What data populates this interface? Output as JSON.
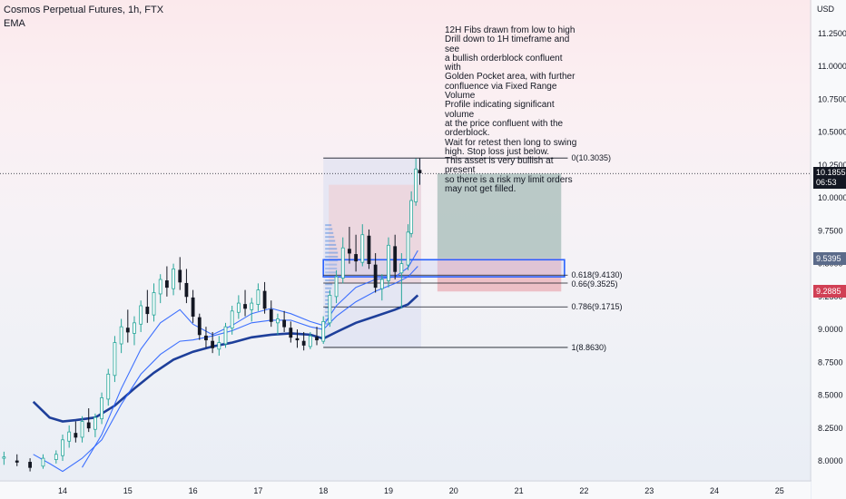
{
  "header": {
    "symbol": "Cosmos Perpetual Futures, 1h, FTX",
    "indicator": "EMA"
  },
  "price_axis": {
    "currency": "USD",
    "ticks": [
      "11.2500",
      "11.0000",
      "10.7500",
      "10.5000",
      "10.2500",
      "10.0000",
      "9.7500",
      "9.5000",
      "9.2500",
      "9.0000",
      "8.7500",
      "8.5000",
      "8.2500",
      "8.0000"
    ],
    "tick_values": [
      11.25,
      11.0,
      10.75,
      10.5,
      10.25,
      10.0,
      9.75,
      9.5,
      9.25,
      9.0,
      8.75,
      8.5,
      8.25,
      8.0
    ],
    "last_price": "10.1855",
    "countdown": "06:53",
    "marker_blue": "9.5395",
    "marker_red": "9.2885",
    "last_price_value": 10.1855,
    "marker_blue_value": 9.5395,
    "marker_red_value": 9.2885
  },
  "time_axis": {
    "labels": [
      "14",
      "15",
      "16",
      "17",
      "18",
      "19",
      "20",
      "21",
      "22",
      "23",
      "24",
      "25"
    ]
  },
  "annotation": {
    "text": "12H Fibs drawn from low to high\nDrill down to 1H timeframe and see\na bullish orderblock confluent with\nGolden Pocket area, with further\nconfluence via Fixed Range Volume\nProfile indicating significant volume\nat the price confluent with the\norderblock.\nWait for retest then long to swing\nhigh. Stop loss just below.\nThis asset is very bullish at present\nso there is a risk my limit orders\nmay not get filled."
  },
  "fib_levels": [
    {
      "label": "0(10.3035)",
      "value": 10.3035
    },
    {
      "label": "0.618(9.4130)",
      "value": 9.413
    },
    {
      "label": "0.66(9.3525)",
      "value": 9.3525
    },
    {
      "label": "0.786(9.1715)",
      "value": 9.1715
    },
    {
      "label": "1(8.8630)",
      "value": 8.863
    }
  ],
  "colors": {
    "bull": "#26a69a",
    "bear": "#131722",
    "ema_fast": "#2962ff",
    "ema_slow": "#1e3f9a",
    "orderblock": "#2962ff",
    "marker_blue": "#5b6b8a",
    "marker_red": "#d14055",
    "last_price": "#131722"
  },
  "chart_data": {
    "type": "candlestick",
    "title": "Cosmos Perpetual Futures, 1h, FTX",
    "ylim": [
      7.9,
      11.45
    ],
    "x_labels": [
      "14",
      "15",
      "16",
      "17",
      "18",
      "19",
      "20",
      "21",
      "22",
      "23",
      "24",
      "25"
    ],
    "price_line": 10.1855,
    "series": [
      {
        "name": "EMA",
        "points": [
          [
            13.55,
            8.45
          ],
          [
            13.8,
            8.33
          ],
          [
            14.0,
            8.3
          ],
          [
            14.2,
            8.31
          ],
          [
            14.5,
            8.33
          ],
          [
            14.8,
            8.42
          ],
          [
            15.1,
            8.55
          ],
          [
            15.4,
            8.67
          ],
          [
            15.7,
            8.77
          ],
          [
            16.0,
            8.83
          ],
          [
            16.3,
            8.87
          ],
          [
            16.6,
            8.9
          ],
          [
            16.9,
            8.94
          ],
          [
            17.2,
            8.96
          ],
          [
            17.5,
            8.97
          ],
          [
            17.8,
            8.96
          ],
          [
            18.0,
            8.93
          ],
          [
            18.2,
            8.98
          ],
          [
            18.5,
            9.05
          ],
          [
            18.8,
            9.1
          ],
          [
            19.1,
            9.15
          ],
          [
            19.3,
            9.19
          ],
          [
            19.45,
            9.26
          ]
        ]
      },
      {
        "name": "",
        "points": [
          [
            13.55,
            8.05
          ],
          [
            13.8,
            7.98
          ],
          [
            14.0,
            7.92
          ],
          [
            14.3,
            8.02
          ],
          [
            14.6,
            8.16
          ],
          [
            14.9,
            8.43
          ],
          [
            15.2,
            8.66
          ],
          [
            15.5,
            8.81
          ],
          [
            15.8,
            8.91
          ],
          [
            16.0,
            8.92
          ],
          [
            16.3,
            8.95
          ],
          [
            16.6,
            8.99
          ],
          [
            16.9,
            9.05
          ],
          [
            17.2,
            9.07
          ],
          [
            17.5,
            9.07
          ],
          [
            17.8,
            9.02
          ],
          [
            18.0,
            9.0
          ],
          [
            18.2,
            9.1
          ],
          [
            18.5,
            9.21
          ],
          [
            18.8,
            9.29
          ],
          [
            19.1,
            9.35
          ],
          [
            19.3,
            9.4
          ],
          [
            19.45,
            9.48
          ]
        ]
      },
      {
        "name": "",
        "points": [
          [
            14.3,
            7.95
          ],
          [
            14.6,
            8.2
          ],
          [
            14.9,
            8.55
          ],
          [
            15.2,
            8.85
          ],
          [
            15.5,
            9.05
          ],
          [
            15.8,
            9.15
          ],
          [
            16.0,
            9.04
          ],
          [
            16.3,
            8.96
          ],
          [
            16.6,
            9.03
          ],
          [
            16.9,
            9.12
          ],
          [
            17.2,
            9.16
          ],
          [
            17.5,
            9.12
          ],
          [
            17.8,
            9.06
          ],
          [
            18.0,
            9.03
          ],
          [
            18.2,
            9.18
          ],
          [
            18.5,
            9.32
          ],
          [
            18.8,
            9.38
          ],
          [
            19.1,
            9.4
          ],
          [
            19.3,
            9.47
          ],
          [
            19.45,
            9.6
          ]
        ]
      }
    ],
    "candles": [
      [
        13.1,
        8.02,
        8.07,
        7.97,
        8.03
      ],
      [
        13.3,
        8.0,
        8.05,
        7.96,
        7.99
      ],
      [
        13.5,
        7.99,
        8.02,
        7.92,
        7.95
      ],
      [
        13.7,
        7.96,
        8.05,
        7.94,
        8.02
      ],
      [
        13.9,
        8.01,
        8.08,
        7.98,
        8.05
      ],
      [
        14.0,
        8.04,
        8.2,
        8.0,
        8.16
      ],
      [
        14.1,
        8.15,
        8.27,
        8.1,
        8.22
      ],
      [
        14.2,
        8.21,
        8.3,
        8.14,
        8.18
      ],
      [
        14.3,
        8.18,
        8.34,
        8.14,
        8.3
      ],
      [
        14.4,
        8.29,
        8.4,
        8.22,
        8.25
      ],
      [
        14.5,
        8.24,
        8.36,
        8.18,
        8.33
      ],
      [
        14.6,
        8.32,
        8.52,
        8.28,
        8.48
      ],
      [
        14.7,
        8.47,
        8.7,
        8.42,
        8.66
      ],
      [
        14.8,
        8.65,
        8.95,
        8.6,
        8.9
      ],
      [
        14.9,
        8.89,
        9.08,
        8.82,
        9.02
      ],
      [
        15.0,
        9.01,
        9.15,
        8.9,
        8.98
      ],
      [
        15.1,
        8.97,
        9.1,
        8.88,
        9.05
      ],
      [
        15.2,
        9.04,
        9.22,
        8.98,
        9.18
      ],
      [
        15.3,
        9.17,
        9.3,
        9.05,
        9.12
      ],
      [
        15.4,
        9.11,
        9.35,
        9.06,
        9.28
      ],
      [
        15.5,
        9.27,
        9.42,
        9.2,
        9.38
      ],
      [
        15.6,
        9.37,
        9.48,
        9.25,
        9.32
      ],
      [
        15.7,
        9.31,
        9.5,
        9.26,
        9.46
      ],
      [
        15.8,
        9.45,
        9.55,
        9.3,
        9.36
      ],
      [
        15.9,
        9.35,
        9.46,
        9.2,
        9.25
      ],
      [
        16.0,
        9.24,
        9.3,
        9.05,
        9.1
      ],
      [
        16.1,
        9.09,
        9.12,
        8.92,
        8.96
      ],
      [
        16.2,
        8.95,
        9.02,
        8.86,
        8.92
      ],
      [
        16.3,
        8.91,
        8.98,
        8.82,
        8.86
      ],
      [
        16.4,
        8.85,
        8.95,
        8.8,
        8.9
      ],
      [
        16.5,
        8.89,
        9.05,
        8.86,
        9.02
      ],
      [
        16.6,
        9.01,
        9.18,
        8.96,
        9.14
      ],
      [
        16.7,
        9.13,
        9.26,
        9.08,
        9.2
      ],
      [
        16.8,
        9.19,
        9.3,
        9.1,
        9.16
      ],
      [
        16.9,
        9.15,
        9.24,
        9.06,
        9.2
      ],
      [
        17.0,
        9.19,
        9.35,
        9.14,
        9.3
      ],
      [
        17.1,
        9.29,
        9.36,
        9.12,
        9.16
      ],
      [
        17.2,
        9.15,
        9.22,
        9.02,
        9.06
      ],
      [
        17.3,
        9.05,
        9.12,
        8.96,
        9.08
      ],
      [
        17.4,
        9.07,
        9.14,
        8.98,
        9.02
      ],
      [
        17.5,
        9.01,
        9.06,
        8.9,
        8.94
      ],
      [
        17.6,
        8.93,
        9.0,
        8.86,
        8.92
      ],
      [
        17.7,
        8.91,
        8.98,
        8.84,
        8.88
      ],
      [
        17.8,
        8.87,
        8.98,
        8.85,
        8.95
      ],
      [
        17.9,
        8.94,
        9.02,
        8.88,
        8.92
      ],
      [
        18.0,
        8.91,
        9.1,
        8.89,
        9.06
      ],
      [
        18.1,
        9.05,
        9.3,
        9.02,
        9.26
      ],
      [
        18.2,
        9.25,
        9.45,
        9.2,
        9.4
      ],
      [
        18.3,
        9.39,
        9.7,
        9.35,
        9.62
      ],
      [
        18.4,
        9.61,
        9.78,
        9.5,
        9.58
      ],
      [
        18.5,
        9.57,
        9.72,
        9.44,
        9.52
      ],
      [
        18.6,
        9.51,
        9.8,
        9.48,
        9.72
      ],
      [
        18.7,
        9.71,
        9.76,
        9.46,
        9.5
      ],
      [
        18.8,
        9.49,
        9.58,
        9.28,
        9.32
      ],
      [
        18.9,
        9.31,
        9.42,
        9.22,
        9.38
      ],
      [
        19.0,
        9.37,
        9.7,
        9.32,
        9.64
      ],
      [
        19.1,
        9.63,
        9.72,
        9.38,
        9.44
      ],
      [
        19.2,
        9.43,
        9.58,
        9.16,
        9.5
      ],
      [
        19.3,
        9.49,
        9.8,
        9.45,
        9.74
      ],
      [
        19.35,
        9.73,
        10.05,
        9.7,
        9.98
      ],
      [
        19.42,
        9.97,
        10.3,
        9.94,
        10.22
      ],
      [
        19.48,
        10.21,
        10.3,
        10.1,
        10.19
      ]
    ]
  }
}
